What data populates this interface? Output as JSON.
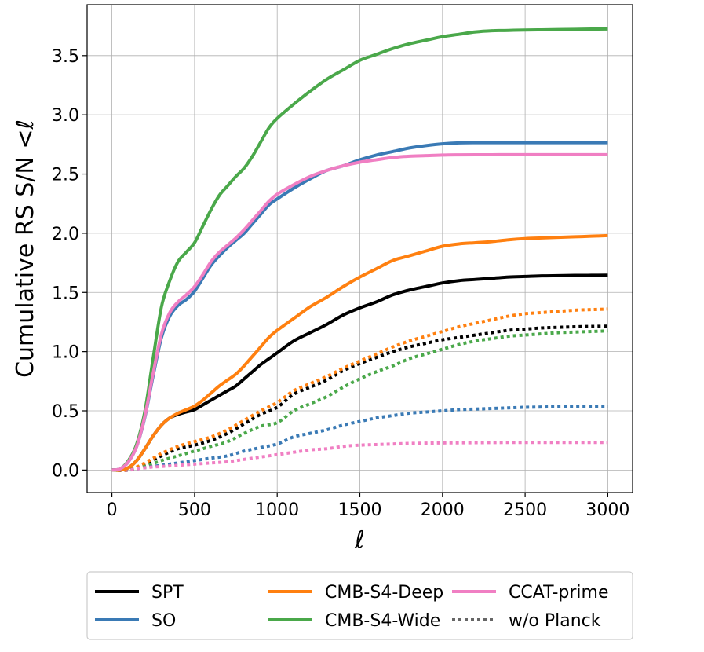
{
  "chart_data": {
    "type": "line",
    "ylabel": "Cumulative RS S/N  <ℓ",
    "xlabel": "ℓ",
    "xlim": [
      -150,
      3150
    ],
    "ylim": [
      -0.19,
      3.93
    ],
    "xticks": [
      0,
      500,
      1000,
      1500,
      2000,
      2500,
      3000
    ],
    "yticks": [
      0.0,
      0.5,
      1.0,
      1.5,
      2.0,
      2.5,
      3.0,
      3.5
    ],
    "xtick_labels": [
      "0",
      "500",
      "1000",
      "1500",
      "2000",
      "2500",
      "3000"
    ],
    "ytick_labels": [
      "0.0",
      "0.5",
      "1.0",
      "1.5",
      "2.0",
      "2.5",
      "3.0",
      "3.5"
    ],
    "grid": true,
    "legend_position": "bottom, outside plot, 3 columns",
    "series": [
      {
        "name": "SPT",
        "color": "#000000",
        "style": "solid",
        "x": [
          0,
          50,
          100,
          150,
          200,
          250,
          300,
          350,
          400,
          450,
          500,
          550,
          600,
          650,
          700,
          750,
          800,
          850,
          900,
          950,
          1000,
          1100,
          1200,
          1300,
          1400,
          1500,
          1600,
          1700,
          1800,
          1900,
          2000,
          2100,
          2200,
          2300,
          2400,
          2500,
          2600,
          2700,
          2800,
          2900,
          3000
        ],
        "y": [
          0.0,
          0.0,
          0.02,
          0.08,
          0.18,
          0.29,
          0.38,
          0.44,
          0.47,
          0.49,
          0.51,
          0.55,
          0.59,
          0.63,
          0.67,
          0.71,
          0.77,
          0.83,
          0.89,
          0.94,
          0.99,
          1.09,
          1.16,
          1.23,
          1.31,
          1.37,
          1.42,
          1.48,
          1.52,
          1.55,
          1.58,
          1.6,
          1.61,
          1.62,
          1.63,
          1.635,
          1.64,
          1.642,
          1.644,
          1.645,
          1.646
        ]
      },
      {
        "name": "SO",
        "color": "#3a7ab5",
        "style": "solid",
        "x": [
          0,
          50,
          100,
          150,
          200,
          250,
          300,
          350,
          400,
          450,
          500,
          550,
          600,
          650,
          700,
          750,
          800,
          850,
          900,
          950,
          1000,
          1100,
          1200,
          1300,
          1400,
          1500,
          1600,
          1700,
          1800,
          1900,
          2000,
          2100,
          2200,
          2300,
          2400,
          2500,
          2600,
          2700,
          2800,
          2900,
          3000
        ],
        "y": [
          0.0,
          0.01,
          0.07,
          0.2,
          0.45,
          0.8,
          1.12,
          1.3,
          1.39,
          1.44,
          1.51,
          1.62,
          1.73,
          1.81,
          1.88,
          1.94,
          2.0,
          2.08,
          2.16,
          2.24,
          2.29,
          2.38,
          2.46,
          2.53,
          2.57,
          2.62,
          2.66,
          2.69,
          2.72,
          2.74,
          2.755,
          2.763,
          2.765,
          2.765,
          2.765,
          2.765,
          2.765,
          2.765,
          2.765,
          2.765,
          2.765
        ]
      },
      {
        "name": "CMB-S4-Deep",
        "color": "#ff8010",
        "style": "solid",
        "x": [
          0,
          50,
          100,
          150,
          200,
          250,
          300,
          350,
          400,
          450,
          500,
          550,
          600,
          650,
          700,
          750,
          800,
          850,
          900,
          950,
          1000,
          1100,
          1200,
          1300,
          1400,
          1500,
          1600,
          1700,
          1800,
          1900,
          2000,
          2100,
          2200,
          2300,
          2400,
          2500,
          2600,
          2700,
          2800,
          2900,
          3000
        ],
        "y": [
          0.0,
          0.0,
          0.02,
          0.08,
          0.18,
          0.29,
          0.38,
          0.44,
          0.48,
          0.51,
          0.54,
          0.59,
          0.65,
          0.71,
          0.76,
          0.81,
          0.88,
          0.96,
          1.04,
          1.12,
          1.18,
          1.28,
          1.38,
          1.46,
          1.55,
          1.63,
          1.7,
          1.77,
          1.81,
          1.85,
          1.89,
          1.91,
          1.92,
          1.93,
          1.945,
          1.955,
          1.96,
          1.965,
          1.97,
          1.975,
          1.98
        ]
      },
      {
        "name": "CMB-S4-Wide",
        "color": "#4aa84a",
        "style": "solid",
        "x": [
          0,
          50,
          100,
          150,
          200,
          250,
          300,
          350,
          400,
          450,
          500,
          550,
          600,
          650,
          700,
          750,
          800,
          850,
          900,
          950,
          1000,
          1100,
          1200,
          1300,
          1400,
          1500,
          1600,
          1700,
          1800,
          1900,
          2000,
          2100,
          2200,
          2300,
          2400,
          2500,
          2600,
          2700,
          2800,
          2900,
          3000
        ],
        "y": [
          0.0,
          0.01,
          0.08,
          0.22,
          0.5,
          0.95,
          1.38,
          1.6,
          1.76,
          1.84,
          1.92,
          2.06,
          2.2,
          2.32,
          2.4,
          2.48,
          2.55,
          2.65,
          2.77,
          2.89,
          2.97,
          3.09,
          3.2,
          3.3,
          3.38,
          3.46,
          3.51,
          3.56,
          3.6,
          3.63,
          3.66,
          3.68,
          3.7,
          3.71,
          3.713,
          3.716,
          3.718,
          3.72,
          3.722,
          3.724,
          3.725
        ]
      },
      {
        "name": "CCAT-prime",
        "color": "#f07fc3",
        "style": "solid",
        "x": [
          0,
          50,
          100,
          150,
          200,
          250,
          300,
          350,
          400,
          450,
          500,
          550,
          600,
          650,
          700,
          750,
          800,
          850,
          900,
          950,
          1000,
          1100,
          1200,
          1300,
          1400,
          1500,
          1600,
          1700,
          1800,
          1900,
          2000,
          2100,
          2200,
          2300,
          2400,
          2500,
          2600,
          2700,
          2800,
          2900,
          3000
        ],
        "y": [
          0.0,
          0.01,
          0.07,
          0.2,
          0.46,
          0.82,
          1.15,
          1.33,
          1.42,
          1.48,
          1.55,
          1.65,
          1.76,
          1.84,
          1.9,
          1.96,
          2.03,
          2.11,
          2.19,
          2.27,
          2.33,
          2.41,
          2.48,
          2.53,
          2.57,
          2.6,
          2.62,
          2.64,
          2.65,
          2.655,
          2.66,
          2.662,
          2.663,
          2.663,
          2.664,
          2.664,
          2.664,
          2.664,
          2.664,
          2.664,
          2.664
        ]
      },
      {
        "name": "SPT w/o Planck",
        "color": "#000000",
        "style": "dotted",
        "x": [
          0,
          100,
          200,
          300,
          400,
          500,
          600,
          700,
          800,
          900,
          1000,
          1100,
          1200,
          1300,
          1400,
          1500,
          1600,
          1700,
          1800,
          1900,
          2000,
          2100,
          2200,
          2300,
          2400,
          2500,
          2600,
          2700,
          2800,
          2900,
          3000
        ],
        "y": [
          0.0,
          0.0,
          0.05,
          0.12,
          0.18,
          0.21,
          0.25,
          0.31,
          0.39,
          0.47,
          0.53,
          0.64,
          0.7,
          0.76,
          0.84,
          0.9,
          0.95,
          1.0,
          1.04,
          1.07,
          1.1,
          1.12,
          1.14,
          1.16,
          1.18,
          1.19,
          1.2,
          1.205,
          1.21,
          1.213,
          1.215
        ]
      },
      {
        "name": "CMB-S4-Deep w/o Planck",
        "color": "#ff8010",
        "style": "dotted",
        "x": [
          0,
          100,
          200,
          300,
          400,
          500,
          600,
          700,
          800,
          900,
          1000,
          1100,
          1200,
          1300,
          1400,
          1500,
          1600,
          1700,
          1800,
          1900,
          2000,
          2100,
          2200,
          2300,
          2400,
          2500,
          2600,
          2700,
          2800,
          2900,
          3000
        ],
        "y": [
          0.0,
          0.0,
          0.06,
          0.14,
          0.2,
          0.24,
          0.28,
          0.34,
          0.42,
          0.5,
          0.57,
          0.67,
          0.73,
          0.79,
          0.86,
          0.92,
          0.98,
          1.04,
          1.09,
          1.13,
          1.17,
          1.21,
          1.24,
          1.27,
          1.3,
          1.32,
          1.33,
          1.34,
          1.35,
          1.355,
          1.36
        ]
      },
      {
        "name": "CMB-S4-Wide w/o Planck",
        "color": "#4aa84a",
        "style": "dotted",
        "x": [
          0,
          100,
          200,
          300,
          400,
          500,
          600,
          700,
          800,
          900,
          1000,
          1100,
          1200,
          1300,
          1400,
          1500,
          1600,
          1700,
          1800,
          1900,
          2000,
          2100,
          2200,
          2300,
          2400,
          2500,
          2600,
          2700,
          2800,
          2900,
          3000
        ],
        "y": [
          0.0,
          0.0,
          0.03,
          0.08,
          0.12,
          0.16,
          0.2,
          0.24,
          0.31,
          0.37,
          0.4,
          0.5,
          0.56,
          0.62,
          0.7,
          0.77,
          0.83,
          0.88,
          0.94,
          0.98,
          1.02,
          1.06,
          1.09,
          1.11,
          1.13,
          1.14,
          1.15,
          1.16,
          1.165,
          1.17,
          1.175
        ]
      },
      {
        "name": "SO w/o Planck",
        "color": "#3a7ab5",
        "style": "dotted",
        "x": [
          0,
          100,
          200,
          300,
          400,
          500,
          600,
          700,
          800,
          900,
          1000,
          1100,
          1200,
          1300,
          1400,
          1500,
          1600,
          1700,
          1800,
          1900,
          2000,
          2100,
          2200,
          2300,
          2400,
          2500,
          2600,
          2700,
          2800,
          2900,
          3000
        ],
        "y": [
          0.0,
          0.0,
          0.02,
          0.04,
          0.06,
          0.08,
          0.1,
          0.12,
          0.16,
          0.19,
          0.22,
          0.28,
          0.31,
          0.34,
          0.38,
          0.41,
          0.44,
          0.46,
          0.48,
          0.49,
          0.5,
          0.51,
          0.515,
          0.52,
          0.525,
          0.53,
          0.532,
          0.534,
          0.535,
          0.536,
          0.537
        ]
      },
      {
        "name": "CCAT-prime w/o Planck",
        "color": "#f07fc3",
        "style": "dotted",
        "x": [
          0,
          100,
          200,
          300,
          400,
          500,
          600,
          700,
          800,
          900,
          1000,
          1100,
          1200,
          1300,
          1400,
          1500,
          1600,
          1700,
          1800,
          1900,
          2000,
          2100,
          2200,
          2300,
          2400,
          2500,
          2600,
          2700,
          2800,
          2900,
          3000
        ],
        "y": [
          0.0,
          0.0,
          0.02,
          0.03,
          0.04,
          0.05,
          0.06,
          0.07,
          0.09,
          0.11,
          0.13,
          0.15,
          0.17,
          0.18,
          0.2,
          0.21,
          0.215,
          0.22,
          0.225,
          0.227,
          0.229,
          0.23,
          0.231,
          0.232,
          0.233,
          0.233,
          0.233,
          0.233,
          0.233,
          0.233,
          0.233
        ]
      }
    ],
    "legend": [
      {
        "label": "SPT",
        "color": "#000000",
        "style": "solid"
      },
      {
        "label": "SO",
        "color": "#3a7ab5",
        "style": "solid"
      },
      {
        "label": "CMB-S4-Deep",
        "color": "#ff8010",
        "style": "solid"
      },
      {
        "label": "CMB-S4-Wide",
        "color": "#4aa84a",
        "style": "solid"
      },
      {
        "label": "CCAT-prime",
        "color": "#f07fc3",
        "style": "solid"
      },
      {
        "label": "w/o Planck",
        "color": "#666666",
        "style": "dotted"
      }
    ]
  }
}
